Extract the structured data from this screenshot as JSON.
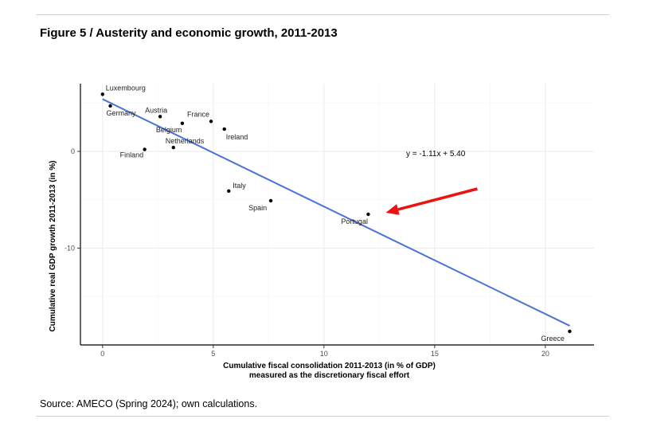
{
  "figure": {
    "title": "Figure 5 / Austerity and economic growth, 2011-2013",
    "source": "Source: AMECO (Spring 2024); own calculations."
  },
  "chart_data": {
    "type": "scatter",
    "xlabel_lines": [
      "Cumulative fiscal consolidation 2011-2013 (in % of GDP)",
      "measured as the discretionary fiscal effort"
    ],
    "ylabel": "Cumulative real GDP growth 2011-2013 (in %)",
    "xlim": [
      -1,
      22.2
    ],
    "ylim": [
      -20,
      7
    ],
    "xticks": [
      0,
      5,
      10,
      15,
      20
    ],
    "yticks": [
      0,
      -10
    ],
    "grid": true,
    "points": [
      {
        "label": "Luxembourg",
        "x": 0.0,
        "y": 5.9
      },
      {
        "label": "Germany",
        "x": 0.35,
        "y": 4.7
      },
      {
        "label": "Austria",
        "x": 2.6,
        "y": 3.6
      },
      {
        "label": "France",
        "x": 4.9,
        "y": 3.1
      },
      {
        "label": "Belgium",
        "x": 3.6,
        "y": 2.9
      },
      {
        "label": "Ireland",
        "x": 5.5,
        "y": 2.3
      },
      {
        "label": "Netherlands",
        "x": 3.2,
        "y": 0.4
      },
      {
        "label": "Finland",
        "x": 1.9,
        "y": 0.2
      },
      {
        "label": "Italy",
        "x": 5.7,
        "y": -4.1
      },
      {
        "label": "Spain",
        "x": 7.6,
        "y": -5.1
      },
      {
        "label": "Portugal",
        "x": 12.0,
        "y": -6.5
      },
      {
        "label": "Greece",
        "x": 21.1,
        "y": -18.6
      }
    ],
    "regression": {
      "slope": -1.11,
      "intercept": 5.4,
      "x_range": [
        0,
        21.1
      ],
      "equation": "y = -1.11x + 5.40"
    },
    "annotation_arrow_target": "Portugal",
    "colors": {
      "line": "#4a72d8",
      "points": "#000000",
      "arrow": "#ee1111",
      "grid": "#ebebeb"
    }
  }
}
